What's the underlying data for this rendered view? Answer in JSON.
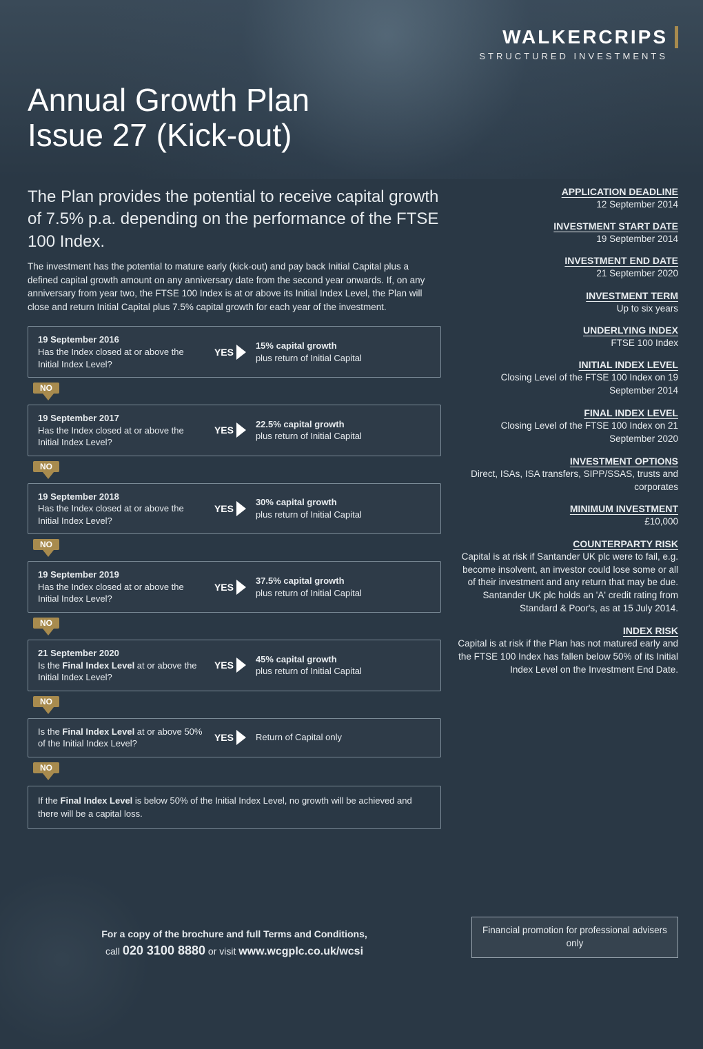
{
  "brand": {
    "name": "WALKERCRIPS",
    "subline": "STRUCTURED INVESTMENTS",
    "accent_color": "#a88b4e"
  },
  "title": {
    "line1": "Annual Growth Plan",
    "line2": "Issue 27 (Kick-out)"
  },
  "intro": {
    "heading": "The Plan provides the potential to receive capital growth of 7.5% p.a. depending on the performance of the FTSE 100 Index.",
    "paragraph": "The investment has the potential to mature early (kick-out) and pay back Initial Capital plus a defined capital growth amount on any anniversary date from the second year onwards. If, on any anniversary from year two, the FTSE 100 Index is at or above its Initial Index Level, the Plan will close and return Initial Capital plus 7.5% capital growth for each year of the investment."
  },
  "flow": {
    "yes_label": "YES",
    "no_label": "NO",
    "question_text": "Has the Index closed at or above the Initial Index Level?",
    "final_question_prefix": "Is the ",
    "final_question_bold": "Final Index Level",
    "final_question_suffix_1": " at or above the Initial Index Level?",
    "final_question_suffix_2": " at or above 50% of the Initial Index Level?",
    "result_suffix": "plus return of Initial Capital",
    "steps": [
      {
        "date": "19 September 2016",
        "growth": "15% capital growth"
      },
      {
        "date": "19 September 2017",
        "growth": "22.5% capital growth"
      },
      {
        "date": "19 September 2018",
        "growth": "30% capital growth"
      },
      {
        "date": "19 September 2019",
        "growth": "37.5% capital growth"
      }
    ],
    "final_step": {
      "date": "21 September 2020",
      "growth": "45% capital growth"
    },
    "barrier_result": "Return of Capital only",
    "loss_text_prefix": "If the ",
    "loss_text_bold": "Final Index Level",
    "loss_text_suffix": " is below 50% of the Initial Index Level, no growth will be achieved and there will be a capital loss."
  },
  "sidebar": [
    {
      "label": "APPLICATION DEADLINE",
      "value": "12 September 2014"
    },
    {
      "label": "INVESTMENT START DATE",
      "value": "19 September 2014"
    },
    {
      "label": "INVESTMENT END DATE",
      "value": "21 September 2020"
    },
    {
      "label": "INVESTMENT TERM",
      "value": "Up to six years"
    },
    {
      "label": "UNDERLYING INDEX",
      "value": "FTSE 100 Index"
    },
    {
      "label": "INITIAL INDEX LEVEL",
      "value": "Closing Level of the FTSE 100 Index on 19 September 2014"
    },
    {
      "label": "FINAL INDEX LEVEL",
      "value": "Closing Level of the FTSE 100 Index on 21 September 2020"
    },
    {
      "label": "INVESTMENT OPTIONS",
      "value": "Direct, ISAs, ISA transfers, SIPP/SSAS, trusts and corporates"
    },
    {
      "label": "MINIMUM INVESTMENT",
      "value": "£10,000"
    },
    {
      "label": "COUNTERPARTY RISK",
      "value": "Capital is at risk if Santander UK plc were to fail, e.g. become insolvent, an investor could lose some or all of their investment and any return that may be due. Santander UK plc holds an 'A' credit rating from Standard & Poor's, as at 15 July 2014."
    },
    {
      "label": "INDEX RISK",
      "value": "Capital is at risk if the Plan has not matured early and the FTSE 100 Index has fallen below 50% of its Initial Index Level on the Investment End Date."
    }
  ],
  "footer": {
    "line1": "For a copy of the brochure and full Terms and Conditions,",
    "call_prefix": "call ",
    "phone": "020 3100 8880",
    "visit_prefix": "   or visit ",
    "url": "www.wcgplc.co.uk/wcsi"
  },
  "promo_box": "Financial promotion for professional advisers only",
  "colors": {
    "page_bg": "#2a3845",
    "box_border": "#7a8a96",
    "accent": "#a88b4e",
    "text": "#e8ecef"
  }
}
